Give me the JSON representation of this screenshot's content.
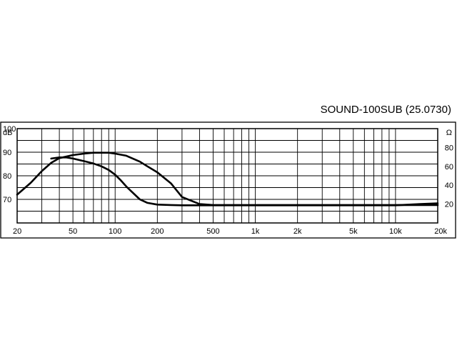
{
  "chart_data": {
    "type": "line",
    "title": "SOUND-100SUB (25.0730)",
    "x_scale": "log",
    "xlim": [
      20,
      20000
    ],
    "x_ticks": [
      20,
      50,
      100,
      200,
      500,
      1000,
      2000,
      5000,
      10000,
      20000
    ],
    "x_tick_labels": [
      "20",
      "50",
      "100",
      "200",
      "500",
      "1k",
      "2k",
      "5k",
      "10k",
      "20k"
    ],
    "y_left": {
      "unit": "dB",
      "ylim": [
        60,
        100
      ],
      "ticks": [
        70,
        80,
        90,
        100
      ],
      "tick_labels": [
        "70",
        "80",
        "90",
        "100"
      ]
    },
    "y_right": {
      "unit": "Ω",
      "ylim": [
        0,
        100
      ],
      "ticks": [
        20,
        40,
        60,
        80
      ],
      "tick_labels": [
        "20",
        "40",
        "60",
        "80"
      ]
    },
    "grid": true,
    "series": [
      {
        "axis": "left",
        "x": [
          20,
          25,
          30,
          35,
          40,
          50,
          60,
          70,
          80,
          90,
          100,
          120,
          150,
          170,
          200,
          250,
          300,
          400,
          500,
          700,
          1000,
          2000,
          5000,
          10000,
          20000
        ],
        "y": [
          72,
          77,
          82,
          85.5,
          87.5,
          88.8,
          89.4,
          89.8,
          89.8,
          89.8,
          89.4,
          88.5,
          86,
          84,
          81.5,
          76.8,
          71,
          68,
          67.6,
          67.6,
          67.6,
          67.6,
          67.6,
          67.6,
          67.6
        ]
      },
      {
        "axis": "left",
        "x": [
          35,
          40,
          45,
          50,
          60,
          70,
          80,
          90,
          100,
          110,
          120,
          130,
          150,
          170,
          200,
          250,
          300,
          400,
          500,
          700,
          1000,
          2000,
          5000,
          10000,
          15000,
          20000
        ],
        "y": [
          87.3,
          87.8,
          87.8,
          87.3,
          86.2,
          85.2,
          84,
          82.5,
          80.5,
          78,
          75.5,
          73.5,
          70,
          68.5,
          67.8,
          67.6,
          67.5,
          67.5,
          67.5,
          67.5,
          67.5,
          67.5,
          67.5,
          67.5,
          68,
          68.3
        ]
      }
    ]
  }
}
